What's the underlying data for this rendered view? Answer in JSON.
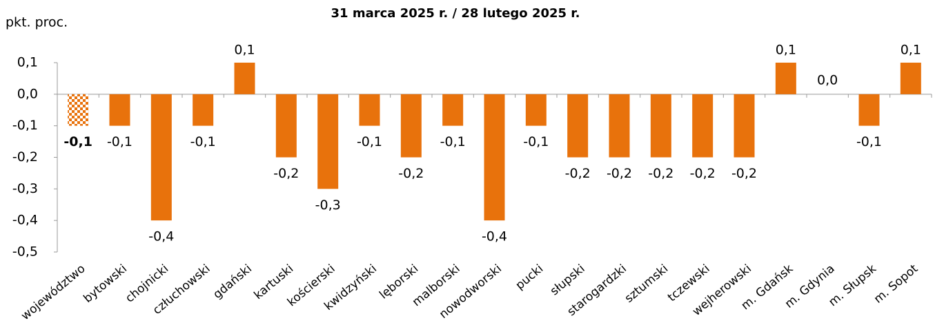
{
  "chart_data": {
    "type": "bar",
    "title": "31 marca 2025 r. / 28 lutego 2025 r.",
    "y_label": "pkt. proc.",
    "categories": [
      "województwo",
      "bytowski",
      "chojnicki",
      "człuchowski",
      "gdański",
      "kartuski",
      "kościerski",
      "kwidzyński",
      "lęborski",
      "malborski",
      "nowodworski",
      "pucki",
      "słupski",
      "starogardzki",
      "sztumski",
      "tczewski",
      "wejherowski",
      "m. Gdańsk",
      "m. Gdynia",
      "m. Słupsk",
      "m. Sopot"
    ],
    "values": [
      -0.1,
      -0.1,
      -0.4,
      -0.1,
      0.1,
      -0.2,
      -0.3,
      -0.1,
      -0.2,
      -0.1,
      -0.4,
      -0.1,
      -0.2,
      -0.2,
      -0.2,
      -0.2,
      -0.2,
      0.1,
      0.0,
      -0.1,
      0.1
    ],
    "value_labels": [
      "-0,1",
      "-0,1",
      "-0,4",
      "-0,1",
      "0,1",
      "-0,2",
      "-0,3",
      "-0,1",
      "-0,2",
      "-0,1",
      "-0,4",
      "-0,1",
      "-0,2",
      "-0,2",
      "-0,2",
      "-0,2",
      "-0,2",
      "0,1",
      "0,0",
      "-0,1",
      "0,1"
    ],
    "color": "#e8720c",
    "ylim": [
      -0.5,
      0.1
    ],
    "yticks": [
      {
        "value": 0.1,
        "label": "0,1"
      },
      {
        "value": 0.0,
        "label": "0,0"
      },
      {
        "value": -0.1,
        "label": "-0,1"
      },
      {
        "value": -0.2,
        "label": "-0,2"
      },
      {
        "value": -0.3,
        "label": "-0,3"
      },
      {
        "value": -0.4,
        "label": "-0,4"
      },
      {
        "value": -0.5,
        "label": "-0,5"
      }
    ],
    "grid": false
  }
}
